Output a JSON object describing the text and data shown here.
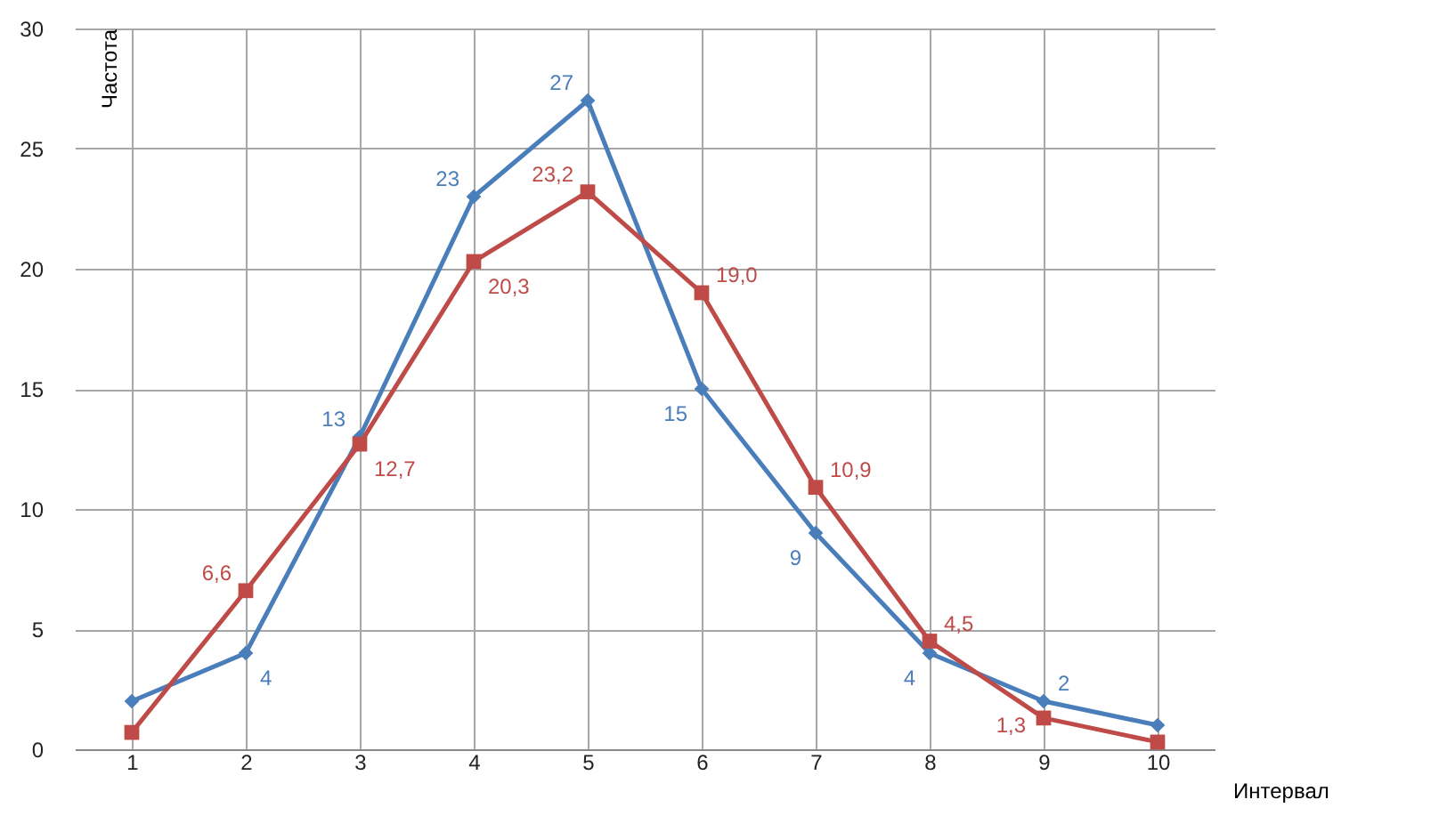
{
  "chart_data": {
    "type": "line",
    "xlabel": "Интервал",
    "ylabel": "Частота",
    "categories": [
      "1",
      "2",
      "3",
      "4",
      "5",
      "6",
      "7",
      "8",
      "9",
      "10"
    ],
    "series": [
      {
        "color": "#4a7ebb",
        "marker": "diamond",
        "values": [
          2,
          4,
          13,
          23,
          27,
          15,
          9,
          4,
          2,
          1
        ],
        "value_labels": [
          null,
          "4",
          "13",
          "23",
          "27",
          "15",
          "9",
          "4",
          "2",
          null
        ]
      },
      {
        "color": "#be4b48",
        "marker": "square",
        "values": [
          0.7,
          6.6,
          12.7,
          20.3,
          23.2,
          19.0,
          10.9,
          4.5,
          1.3,
          0.3
        ],
        "value_labels": [
          null,
          "6,6",
          "12,7",
          "20,3",
          "23,2",
          "19,0",
          "10,9",
          "4,5",
          "1,3",
          null
        ]
      }
    ],
    "ylim": [
      0,
      30
    ],
    "yticks": [
      0,
      5,
      10,
      15,
      20,
      25,
      30
    ],
    "grid": true,
    "legend": false,
    "line_style": "solid"
  }
}
